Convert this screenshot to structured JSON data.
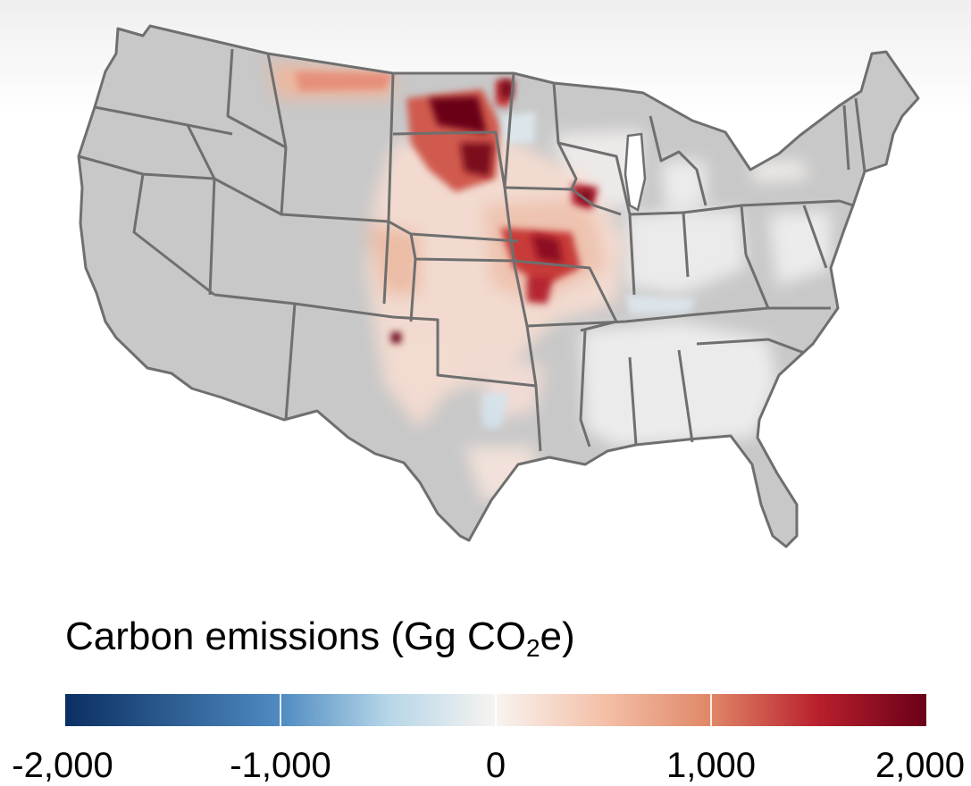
{
  "legend": {
    "title_prefix": "Carbon emissions (Gg CO",
    "title_subscript": "2",
    "title_suffix": "e)",
    "min": -2000,
    "max": 2000,
    "ticks": [
      {
        "value": -2000,
        "label": "-2,000"
      },
      {
        "value": -1000,
        "label": "-1,000"
      },
      {
        "value": 0,
        "label": "0"
      },
      {
        "value": 1000,
        "label": "1,000"
      },
      {
        "value": 2000,
        "label": "2,000"
      }
    ],
    "colorscale": [
      {
        "value": -2000,
        "color": "#0b2f63"
      },
      {
        "value": -1000,
        "color": "#4f8bc2"
      },
      {
        "value": -500,
        "color": "#b6d6e8"
      },
      {
        "value": 0,
        "color": "#f7f4f1"
      },
      {
        "value": 500,
        "color": "#f4c0a8"
      },
      {
        "value": 1000,
        "color": "#e08767"
      },
      {
        "value": 1500,
        "color": "#b81f2c"
      },
      {
        "value": 2000,
        "color": "#6a0018"
      }
    ]
  },
  "map": {
    "no_data_color": "#c8c8c8",
    "border_color": "#6f6f6f",
    "region": "Contiguous United States"
  }
}
